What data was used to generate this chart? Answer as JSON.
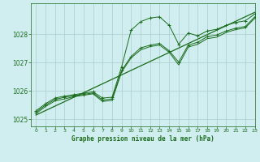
{
  "title": "Graphe pression niveau de la mer (hPa)",
  "bg_color": "#d0eef0",
  "grid_color": "#aacccc",
  "line_color": "#1a6b1a",
  "marker_color": "#1a6b1a",
  "xlim": [
    -0.5,
    23
  ],
  "ylim": [
    1024.75,
    1029.1
  ],
  "yticks": [
    1025,
    1026,
    1027,
    1028
  ],
  "xticks": [
    0,
    1,
    2,
    3,
    4,
    5,
    6,
    7,
    8,
    9,
    10,
    11,
    12,
    13,
    14,
    15,
    16,
    17,
    18,
    19,
    20,
    21,
    22,
    23
  ],
  "series1_x": [
    0,
    1,
    2,
    3,
    4,
    5,
    6,
    7,
    8,
    9,
    10,
    11,
    12,
    13,
    14,
    15,
    16,
    17,
    18,
    19,
    20,
    21,
    22,
    23
  ],
  "series1_y": [
    1025.3,
    1025.55,
    1025.75,
    1025.82,
    1025.87,
    1025.92,
    1025.97,
    1025.75,
    1025.78,
    1026.85,
    1028.15,
    1028.45,
    1028.58,
    1028.62,
    1028.32,
    1027.65,
    1028.05,
    1027.95,
    1028.12,
    1028.18,
    1028.32,
    1028.42,
    1028.48,
    1028.72
  ],
  "series2_x": [
    0,
    1,
    2,
    3,
    4,
    5,
    6,
    7,
    8,
    9,
    10,
    11,
    12,
    13,
    14,
    15,
    16,
    17,
    18,
    19,
    20,
    21,
    22,
    23
  ],
  "series2_y": [
    1025.25,
    1025.5,
    1025.7,
    1025.78,
    1025.83,
    1025.88,
    1025.93,
    1025.68,
    1025.72,
    1026.72,
    1027.22,
    1027.52,
    1027.62,
    1027.68,
    1027.42,
    1027.02,
    1027.62,
    1027.72,
    1027.92,
    1027.98,
    1028.12,
    1028.22,
    1028.28,
    1028.62
  ],
  "series3_x": [
    0,
    1,
    2,
    3,
    4,
    5,
    6,
    7,
    8,
    9,
    10,
    11,
    12,
    13,
    14,
    15,
    16,
    17,
    18,
    19,
    20,
    21,
    22,
    23
  ],
  "series3_y": [
    1025.2,
    1025.45,
    1025.65,
    1025.72,
    1025.8,
    1025.85,
    1025.9,
    1025.63,
    1025.67,
    1026.67,
    1027.17,
    1027.45,
    1027.57,
    1027.62,
    1027.37,
    1026.92,
    1027.55,
    1027.65,
    1027.85,
    1027.9,
    1028.07,
    1028.17,
    1028.23,
    1028.57
  ],
  "trend_x": [
    0,
    23
  ],
  "trend_y": [
    1025.15,
    1028.78
  ]
}
